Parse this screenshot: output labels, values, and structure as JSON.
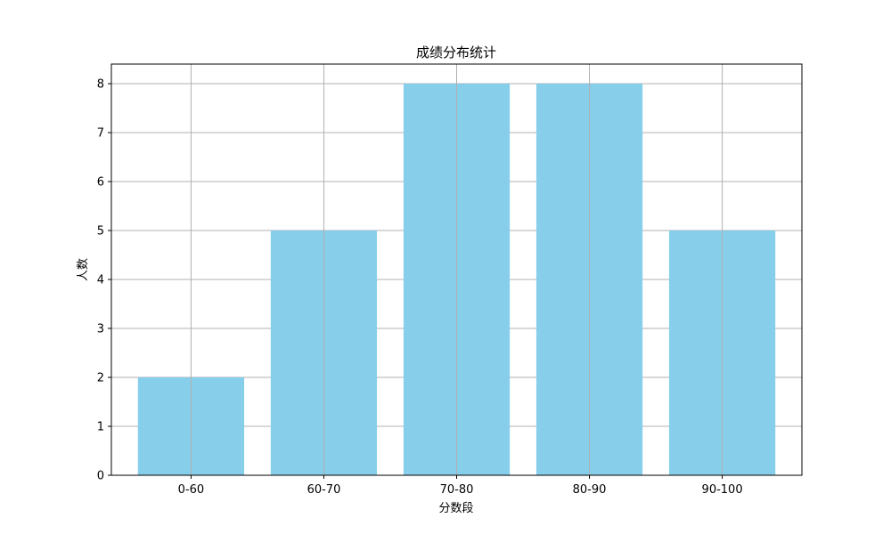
{
  "chart_data": {
    "type": "bar",
    "title": "成绩分布统计",
    "xlabel": "分数段",
    "ylabel": "人数",
    "categories": [
      "0-60",
      "60-70",
      "70-80",
      "80-90",
      "90-100"
    ],
    "values": [
      2,
      5,
      8,
      8,
      5
    ],
    "ylim": [
      0,
      8.4
    ],
    "yticks": [
      0,
      1,
      2,
      3,
      4,
      5,
      6,
      7,
      8
    ],
    "grid": true,
    "bar_color": "#87CEEB",
    "grid_color": "#b0b0b0"
  }
}
